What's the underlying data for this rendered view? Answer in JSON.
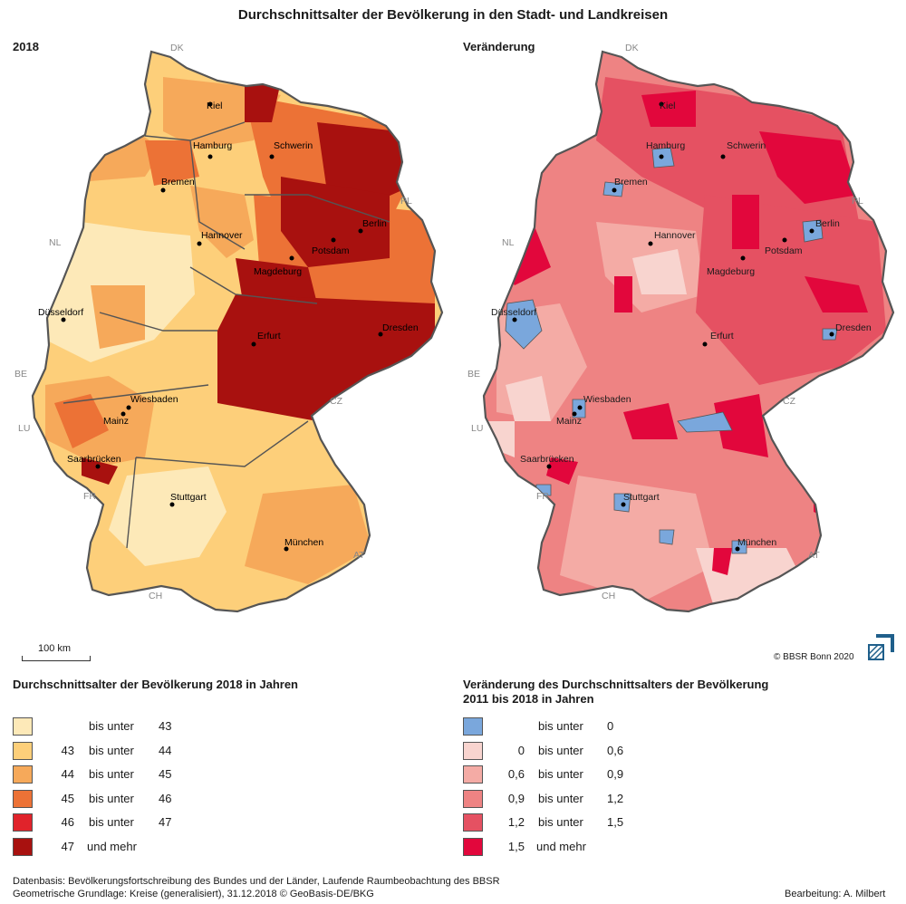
{
  "title": "Durchschnittsalter der Bevölkerung in den Stadt- und Landkreisen",
  "left_panel": {
    "title": "2018"
  },
  "right_panel": {
    "title": "Veränderung"
  },
  "countries": {
    "dk": "DK",
    "pl": "PL",
    "nl": "NL",
    "be": "BE",
    "lu": "LU",
    "fr": "FR",
    "ch": "CH",
    "at": "AT",
    "cz": "CZ"
  },
  "cities": {
    "kiel": "Kiel",
    "hamburg": "Hamburg",
    "schwerin": "Schwerin",
    "bremen": "Bremen",
    "berlin": "Berlin",
    "hannover": "Hannover",
    "potsdam": "Potsdam",
    "magdeburg": "Magdeburg",
    "duesseldorf": "Düsseldorf",
    "dresden": "Dresden",
    "erfurt": "Erfurt",
    "wiesbaden": "Wiesbaden",
    "mainz": "Mainz",
    "saarbruecken": "Saarbrücken",
    "stuttgart": "Stuttgart",
    "muenchen": "München"
  },
  "scalebar": {
    "label": "100 km"
  },
  "copyright": "© BBSR Bonn 2020",
  "legend_left": {
    "title": "Durchschnittsalter der Bevölkerung 2018 in Jahren",
    "items": [
      {
        "from": "",
        "sep": "bis unter",
        "to": "43",
        "color": "#fde9b8"
      },
      {
        "from": "43",
        "sep": "bis unter",
        "to": "44",
        "color": "#fdcf7a"
      },
      {
        "from": "44",
        "sep": "bis unter",
        "to": "45",
        "color": "#f6a95a"
      },
      {
        "from": "45",
        "sep": "bis unter",
        "to": "46",
        "color": "#ec7236"
      },
      {
        "from": "46",
        "sep": "bis unter",
        "to": "47",
        "color": "#e0232b"
      },
      {
        "from": "47",
        "sep": "und mehr",
        "to": "",
        "color": "#a8110f"
      }
    ]
  },
  "legend_right": {
    "title_line1": "Veränderung des Durchschnittsalters der Bevölkerung",
    "title_line2": "2011 bis 2018 in Jahren",
    "items": [
      {
        "from": "",
        "sep": "bis unter",
        "to": "0",
        "color": "#7aa7dc"
      },
      {
        "from": "0",
        "sep": "bis unter",
        "to": "0,6",
        "color": "#f8d4cf"
      },
      {
        "from": "0,6",
        "sep": "bis unter",
        "to": "0,9",
        "color": "#f4aba5"
      },
      {
        "from": "0,9",
        "sep": "bis unter",
        "to": "1,2",
        "color": "#ee8383"
      },
      {
        "from": "1,2",
        "sep": "bis unter",
        "to": "1,5",
        "color": "#e55162"
      },
      {
        "from": "1,5",
        "sep": "und mehr",
        "to": "",
        "color": "#e2073c"
      }
    ]
  },
  "footer": {
    "line1": "Datenbasis: Bevölkerungsfortschreibung des Bundes und der Länder, Laufende Raumbeobachtung des BBSR",
    "line2": "Geometrische Grundlage: Kreise (generalisiert), 31.12.2018 © GeoBasis-DE/BKG",
    "credit": "Bearbeitung: A. Milbert"
  }
}
